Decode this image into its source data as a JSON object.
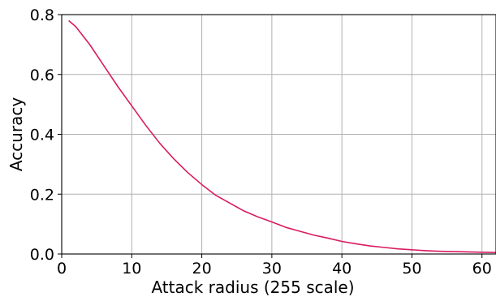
{
  "chart_data": {
    "type": "line",
    "title": "",
    "xlabel": "Attack radius (255 scale)",
    "ylabel": "Accuracy",
    "xlim": [
      0,
      62
    ],
    "ylim": [
      0.0,
      0.8
    ],
    "x_ticks": [
      0,
      10,
      20,
      30,
      40,
      50,
      60
    ],
    "y_ticks": [
      0.0,
      0.2,
      0.4,
      0.6,
      0.8
    ],
    "x_tick_labels": [
      "0",
      "10",
      "20",
      "30",
      "40",
      "50",
      "60"
    ],
    "y_tick_labels": [
      "0.0",
      "0.2",
      "0.4",
      "0.6",
      "0.8"
    ],
    "grid": true,
    "legend": "none",
    "series": [
      {
        "color": "#d81b60",
        "x": [
          1,
          2,
          4,
          6,
          8,
          10,
          12,
          14,
          16,
          18,
          20,
          22,
          24,
          26,
          28,
          30,
          32,
          34,
          36,
          38,
          40,
          42,
          44,
          46,
          48,
          50,
          52,
          54,
          56,
          58,
          60,
          62
        ],
        "y": [
          0.78,
          0.76,
          0.7,
          0.63,
          0.56,
          0.495,
          0.43,
          0.37,
          0.318,
          0.272,
          0.232,
          0.196,
          0.17,
          0.144,
          0.124,
          0.107,
          0.089,
          0.076,
          0.063,
          0.053,
          0.042,
          0.034,
          0.027,
          0.022,
          0.017,
          0.014,
          0.011,
          0.009,
          0.008,
          0.007,
          0.006,
          0.005
        ]
      }
    ]
  }
}
